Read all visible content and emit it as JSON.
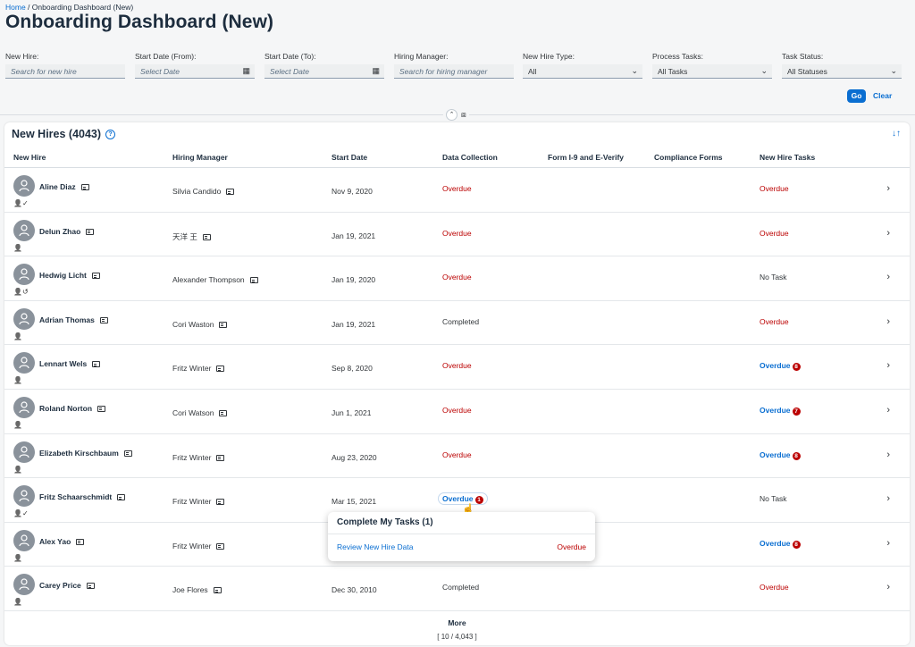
{
  "breadcrumb": {
    "home": "Home",
    "separator": " / ",
    "current": "Onboarding Dashboard (New)"
  },
  "page_title": "Onboarding Dashboard (New)",
  "filters": [
    {
      "label": "New Hire:",
      "value": "Search for new hire",
      "placeholder": true,
      "icon": ""
    },
    {
      "label": "Start Date (From):",
      "value": "Select Date",
      "placeholder": true,
      "icon": "calendar-icon"
    },
    {
      "label": "Start Date (To):",
      "value": "Select Date",
      "placeholder": true,
      "icon": "calendar-icon"
    },
    {
      "label": "Hiring Manager:",
      "value": "Search for hiring manager",
      "placeholder": true,
      "icon": ""
    },
    {
      "label": "New Hire Type:",
      "value": "All",
      "placeholder": false,
      "icon": "chevron-down-icon"
    },
    {
      "label": "Process Tasks:",
      "value": "All Tasks",
      "placeholder": false,
      "icon": "chevron-down-icon"
    },
    {
      "label": "Task Status:",
      "value": "All Statuses",
      "placeholder": false,
      "icon": "chevron-down-icon"
    }
  ],
  "actions": {
    "go": "Go",
    "clear": "Clear"
  },
  "table": {
    "title": "New Hires (4043)",
    "columns": [
      "New Hire",
      "Hiring Manager",
      "Start Date",
      "Data Collection",
      "Form I-9 and E-Verify",
      "Compliance Forms",
      "New Hire Tasks"
    ],
    "rows": [
      {
        "name": "Aline Diaz",
        "manager": "Silvia Candido",
        "start": "Nov 9, 2020",
        "data": "Overdue",
        "data_kind": "overdue",
        "tasks": "Overdue",
        "tasks_kind": "overdue",
        "tasks_badge": "",
        "status_icons": "person-check-icon"
      },
      {
        "name": "Delun Zhao",
        "manager": "天洋 王",
        "start": "Jan 19, 2021",
        "data": "Overdue",
        "data_kind": "overdue",
        "tasks": "Overdue",
        "tasks_kind": "overdue",
        "tasks_badge": "",
        "status_icons": "person-icon"
      },
      {
        "name": "Hedwig Licht",
        "manager": "Alexander Thompson",
        "start": "Jan 19, 2020",
        "data": "Overdue",
        "data_kind": "overdue",
        "tasks": "No Task",
        "tasks_kind": "notask",
        "tasks_badge": "",
        "status_icons": "person-history-icon"
      },
      {
        "name": "Adrian Thomas",
        "manager": "Cori Waston",
        "start": "Jan 19, 2021",
        "data": "Completed",
        "data_kind": "completed",
        "tasks": "Overdue",
        "tasks_kind": "overdue",
        "tasks_badge": "",
        "status_icons": "person-icon"
      },
      {
        "name": "Lennart Wels",
        "manager": "Fritz Winter",
        "start": "Sep 8, 2020",
        "data": "Overdue",
        "data_kind": "overdue",
        "tasks": "Overdue",
        "tasks_kind": "link",
        "tasks_badge": "8",
        "status_icons": "person-icon"
      },
      {
        "name": "Roland Norton",
        "manager": "Cori Watson",
        "start": "Jun 1, 2021",
        "data": "Overdue",
        "data_kind": "overdue",
        "tasks": "Overdue",
        "tasks_kind": "link",
        "tasks_badge": "7",
        "status_icons": "person-icon"
      },
      {
        "name": "Elizabeth Kirschbaum",
        "manager": "Fritz Winter",
        "start": "Aug 23, 2020",
        "data": "Overdue",
        "data_kind": "overdue",
        "tasks": "Overdue",
        "tasks_kind": "link",
        "tasks_badge": "8",
        "status_icons": "person-icon"
      },
      {
        "name": "Fritz Schaarschmidt",
        "manager": "Fritz Winter",
        "start": "Mar 15, 2021",
        "data": "Overdue",
        "data_kind": "link",
        "data_badge": "1",
        "tasks": "No Task",
        "tasks_kind": "notask",
        "tasks_badge": "",
        "status_icons": "person-check-icon"
      },
      {
        "name": "Alex Yao",
        "manager": "Fritz Winter",
        "start": "",
        "data": "",
        "data_kind": "none",
        "tasks": "Overdue",
        "tasks_kind": "link",
        "tasks_badge": "8",
        "status_icons": "person-icon"
      },
      {
        "name": "Carey Price",
        "manager": "Joe Flores",
        "start": "Dec 30, 2010",
        "data": "Completed",
        "data_kind": "completed",
        "tasks": "Overdue",
        "tasks_kind": "overdue",
        "tasks_badge": "",
        "status_icons": "person-icon"
      }
    ]
  },
  "popover": {
    "title": "Complete My Tasks (1)",
    "task": "Review New Hire Data",
    "status": "Overdue"
  },
  "footer": {
    "more": "More",
    "count": "[ 10 / 4,043 ]"
  }
}
